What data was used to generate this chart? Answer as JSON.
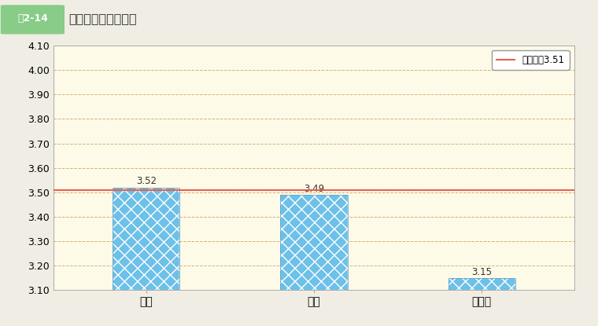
{
  "fig_label": "図2-14",
  "title_text": "性別の回答の平均値",
  "categories": [
    "男性",
    "女性",
    "無回答"
  ],
  "values": [
    3.52,
    3.49,
    3.15
  ],
  "bar_color": "#6DC0E8",
  "avg_line": 3.51,
  "avg_label": "総平均値3.51",
  "avg_color": "#E8604C",
  "ylim_min": 3.1,
  "ylim_max": 4.1,
  "yticks": [
    3.1,
    3.2,
    3.3,
    3.4,
    3.5,
    3.6,
    3.7,
    3.8,
    3.9,
    4.0,
    4.1
  ],
  "bg_color": "#FEFAE8",
  "grid_color": "#C8A060",
  "fig_bg_color": "#F0EEE4",
  "title_box_bg": "#88CC88",
  "title_box_fg": "#ffffff",
  "border_color": "#AAAAAA",
  "value_fontsize": 8.5,
  "tick_fontsize": 9,
  "title_fontsize": 11.5,
  "label_fontsize": 10,
  "bar_width": 0.4,
  "xlim_min": -0.55,
  "xlim_max": 2.55
}
